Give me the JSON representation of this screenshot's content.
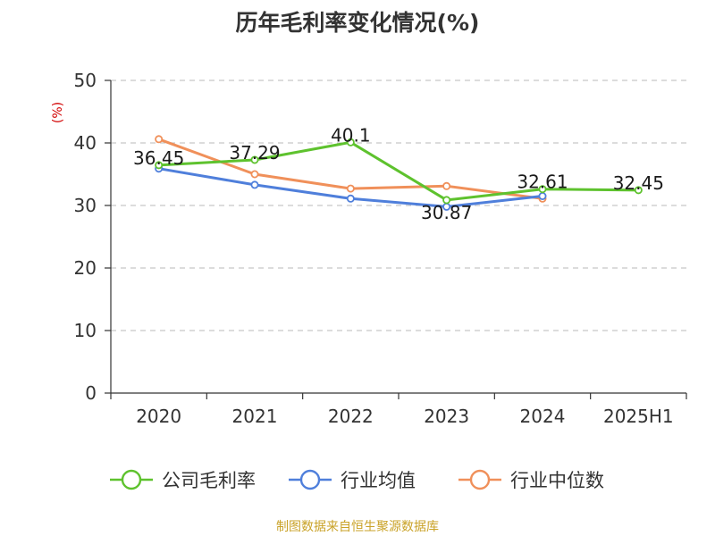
{
  "chart_data": {
    "type": "line",
    "title": "历年毛利率变化情况(%)",
    "unit": "(%)",
    "categories": [
      "2020",
      "2021",
      "2022",
      "2023",
      "2024",
      "2025H1"
    ],
    "ylim": [
      0,
      50
    ],
    "yticks": [
      "0",
      "10",
      "20",
      "30",
      "40",
      "50"
    ],
    "grid": true,
    "legend_position": "bottom",
    "series": [
      {
        "name": "公司毛利率",
        "color": "#5ec22e",
        "values": [
          36.45,
          37.29,
          40.1,
          30.87,
          32.61,
          32.45
        ],
        "labels": [
          "36.45",
          "37.29",
          "40.1",
          "30.87",
          "32.61",
          "32.45"
        ]
      },
      {
        "name": "行业均值",
        "color": "#4f7fdb",
        "values": [
          35.9,
          33.3,
          31.1,
          29.8,
          31.5,
          null
        ]
      },
      {
        "name": "行业中位数",
        "color": "#f0905a",
        "values": [
          40.6,
          35.0,
          32.7,
          33.1,
          31.1,
          null
        ]
      }
    ]
  },
  "source": {
    "text": "制图数据来自恒生聚源数据库",
    "color": "#c9a227"
  }
}
